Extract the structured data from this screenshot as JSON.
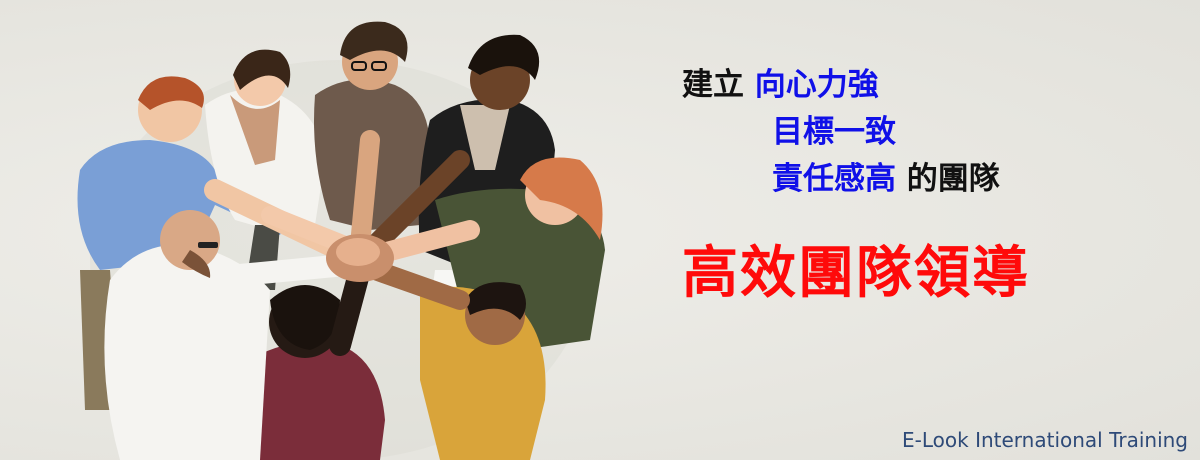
{
  "headline": {
    "prefix": "建立",
    "line1_highlight": "向心力強",
    "line2_highlight": "目標一致",
    "line3_highlight": "責任感高",
    "line3_suffix": "的團隊"
  },
  "title": "高效團隊領導",
  "company": "E-Look International Training",
  "colors": {
    "background": "#e9e8e3",
    "highlight_blue": "#1010e8",
    "title_red": "#ff0a0a",
    "company_navy": "#2e4a78"
  }
}
